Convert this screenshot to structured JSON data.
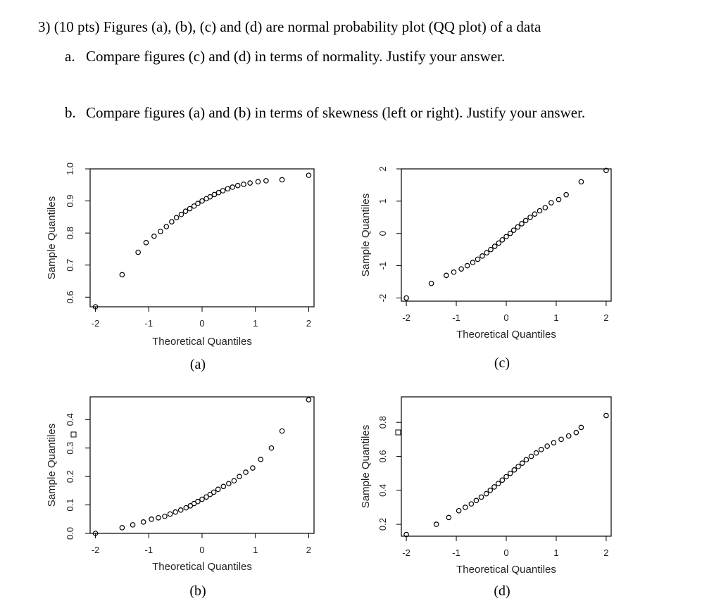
{
  "question": {
    "header": "3)  (10 pts) Figures (a), (b), (c) and (d) are normal probability plot (QQ plot) of a data",
    "part_a_label": "a.",
    "part_a_text": "Compare figures (c) and (d) in terms of normality. Justify your answer.",
    "part_b_label": "b.",
    "part_b_text": "Compare figures (a) and (b) in terms of skewness (left or right). Justify your answer."
  },
  "chart_data": [
    {
      "panel": "(a)",
      "type": "scatter",
      "xlabel": "Theoretical Quantiles",
      "ylabel": "Sample Quantiles",
      "x_ticks": [
        -2,
        -1,
        0,
        1,
        2
      ],
      "y_ticks": [
        0.6,
        0.7,
        0.8,
        0.9,
        1.0
      ],
      "y_tick_labels": [
        "0.6",
        "0.7",
        "0.8",
        "0.9",
        "1.0"
      ],
      "xlim": [
        -2.1,
        2.1
      ],
      "ylim": [
        0.57,
        1.0
      ],
      "x": [
        -2.0,
        -1.5,
        -1.2,
        -1.05,
        -0.9,
        -0.78,
        -0.67,
        -0.57,
        -0.48,
        -0.39,
        -0.31,
        -0.23,
        -0.15,
        -0.08,
        0.0,
        0.08,
        0.15,
        0.23,
        0.31,
        0.39,
        0.48,
        0.57,
        0.67,
        0.78,
        0.9,
        1.05,
        1.2,
        1.5,
        2.0
      ],
      "y": [
        0.57,
        0.67,
        0.74,
        0.77,
        0.79,
        0.805,
        0.82,
        0.835,
        0.848,
        0.858,
        0.868,
        0.876,
        0.884,
        0.892,
        0.9,
        0.907,
        0.913,
        0.92,
        0.926,
        0.932,
        0.938,
        0.943,
        0.948,
        0.952,
        0.956,
        0.96,
        0.963,
        0.966,
        0.98
      ]
    },
    {
      "panel": "(c)",
      "type": "scatter",
      "xlabel": "Theoretical Quantiles",
      "ylabel": "Sample Quantiles",
      "x_ticks": [
        -2,
        -1,
        0,
        1,
        2
      ],
      "y_ticks": [
        -2,
        -1,
        0,
        1,
        2
      ],
      "y_tick_labels": [
        "-2",
        "-1",
        "0",
        "1",
        "2"
      ],
      "xlim": [
        -2.1,
        2.1
      ],
      "ylim": [
        -2.1,
        2.0
      ],
      "x": [
        -2.0,
        -1.5,
        -1.2,
        -1.05,
        -0.9,
        -0.78,
        -0.67,
        -0.57,
        -0.48,
        -0.39,
        -0.31,
        -0.23,
        -0.15,
        -0.08,
        0.0,
        0.08,
        0.15,
        0.23,
        0.31,
        0.39,
        0.48,
        0.57,
        0.67,
        0.78,
        0.9,
        1.05,
        1.2,
        1.5,
        2.0
      ],
      "y": [
        -2.0,
        -1.55,
        -1.3,
        -1.2,
        -1.1,
        -1.0,
        -0.9,
        -0.8,
        -0.7,
        -0.6,
        -0.5,
        -0.4,
        -0.3,
        -0.2,
        -0.1,
        0.0,
        0.1,
        0.2,
        0.3,
        0.4,
        0.5,
        0.6,
        0.7,
        0.8,
        0.95,
        1.05,
        1.2,
        1.6,
        1.95
      ]
    },
    {
      "panel": "(b)",
      "type": "scatter",
      "xlabel": "Theoretical Quantiles",
      "ylabel": "Sample Quantiles",
      "x_ticks": [
        -2,
        -1,
        0,
        1,
        2
      ],
      "y_ticks": [
        0.0,
        0.1,
        0.2,
        0.3,
        0.4
      ],
      "y_tick_labels": [
        "0.0",
        "0.1",
        "0.2",
        "0.3",
        "0.4"
      ],
      "xlim": [
        -2.1,
        2.1
      ],
      "ylim": [
        0.0,
        0.48
      ],
      "x": [
        -2.0,
        -1.5,
        -1.3,
        -1.1,
        -0.95,
        -0.82,
        -0.7,
        -0.6,
        -0.5,
        -0.4,
        -0.3,
        -0.22,
        -0.15,
        -0.08,
        0.0,
        0.08,
        0.15,
        0.22,
        0.3,
        0.4,
        0.5,
        0.6,
        0.7,
        0.82,
        0.95,
        1.1,
        1.3,
        1.5,
        2.0
      ],
      "y": [
        0.0,
        0.02,
        0.03,
        0.04,
        0.05,
        0.055,
        0.06,
        0.068,
        0.075,
        0.082,
        0.09,
        0.097,
        0.105,
        0.112,
        0.12,
        0.128,
        0.137,
        0.145,
        0.155,
        0.165,
        0.175,
        0.185,
        0.2,
        0.215,
        0.23,
        0.26,
        0.3,
        0.36,
        0.47
      ]
    },
    {
      "panel": "(d)",
      "type": "scatter",
      "xlabel": "Theoretical Quantiles",
      "ylabel": "Sample Quantiles",
      "x_ticks": [
        -2,
        -1,
        0,
        1,
        2
      ],
      "y_ticks": [
        0.2,
        0.4,
        0.6,
        0.8
      ],
      "y_tick_labels": [
        "0.2",
        "0.4",
        "0.6",
        "0.8"
      ],
      "xlim": [
        -2.1,
        2.1
      ],
      "ylim": [
        0.13,
        0.95
      ],
      "x": [
        -2.0,
        -1.4,
        -1.15,
        -0.95,
        -0.82,
        -0.7,
        -0.6,
        -0.5,
        -0.4,
        -0.32,
        -0.24,
        -0.16,
        -0.08,
        0.0,
        0.08,
        0.16,
        0.24,
        0.32,
        0.4,
        0.5,
        0.6,
        0.7,
        0.82,
        0.95,
        1.1,
        1.25,
        1.4,
        1.5,
        2.0
      ],
      "y": [
        0.14,
        0.2,
        0.24,
        0.28,
        0.3,
        0.32,
        0.34,
        0.36,
        0.38,
        0.4,
        0.42,
        0.44,
        0.46,
        0.48,
        0.5,
        0.52,
        0.54,
        0.56,
        0.58,
        0.6,
        0.62,
        0.64,
        0.66,
        0.68,
        0.7,
        0.72,
        0.74,
        0.77,
        0.84
      ]
    }
  ]
}
